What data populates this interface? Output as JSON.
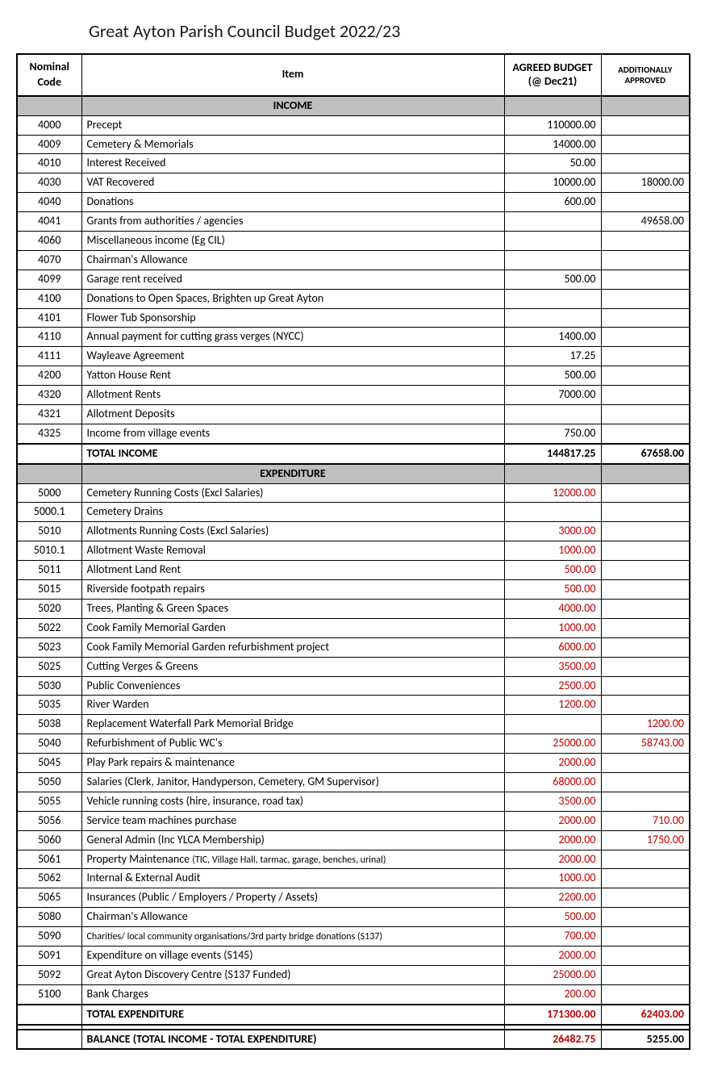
{
  "title": "Great Ayton Parish Council Budget 2022/23",
  "columns": {
    "code": "Nominal Code",
    "item": "Item",
    "budget": "AGREED BUDGET (@ Dec21)",
    "additional": "ADDITIONALLY APPROVED"
  },
  "sections": {
    "income": "INCOME",
    "expenditure": "EXPENDITURE"
  },
  "income_rows": [
    {
      "code": "4000",
      "item": "Precept",
      "budget": "110000.00",
      "add": ""
    },
    {
      "code": "4009",
      "item": "Cemetery & Memorials",
      "budget": "14000.00",
      "add": ""
    },
    {
      "code": "4010",
      "item": "Interest Received",
      "budget": "50.00",
      "add": ""
    },
    {
      "code": "4030",
      "item": "VAT Recovered",
      "budget": "10000.00",
      "add": "18000.00"
    },
    {
      "code": "4040",
      "item": "Donations",
      "budget": "600.00",
      "add": ""
    },
    {
      "code": "4041",
      "item": "Grants from authorities / agencies",
      "budget": "",
      "add": "49658.00"
    },
    {
      "code": "4060",
      "item": "Miscellaneous income (Eg CIL)",
      "budget": "",
      "add": ""
    },
    {
      "code": "4070",
      "item": "Chairman's Allowance",
      "budget": "",
      "add": ""
    },
    {
      "code": "4099",
      "item": "Garage rent received",
      "budget": "500.00",
      "add": ""
    },
    {
      "code": "4100",
      "item": "Donations to Open Spaces, Brighten up Great Ayton",
      "budget": "",
      "add": ""
    },
    {
      "code": "4101",
      "item": "Flower Tub Sponsorship",
      "budget": "",
      "add": ""
    },
    {
      "code": "4110",
      "item": "Annual payment for cutting grass verges (NYCC)",
      "budget": "1400.00",
      "add": ""
    },
    {
      "code": "4111",
      "item": "Wayleave Agreement",
      "budget": "17.25",
      "add": ""
    },
    {
      "code": "4200",
      "item": "Yatton House Rent",
      "budget": "500.00",
      "add": ""
    },
    {
      "code": "4320",
      "item": "Allotment Rents",
      "budget": "7000.00",
      "add": ""
    },
    {
      "code": "4321",
      "item": "Allotment Deposits",
      "budget": "",
      "add": ""
    },
    {
      "code": "4325",
      "item": "Income from village events",
      "budget": "750.00",
      "add": ""
    }
  ],
  "total_income": {
    "label": "TOTAL INCOME",
    "budget": "144817.25",
    "add": "67658.00"
  },
  "expenditure_rows": [
    {
      "code": "5000",
      "item": "Cemetery Running Costs (Excl Salaries)",
      "budget": "12000.00",
      "add": ""
    },
    {
      "code": "5000.1",
      "item": "Cemetery Drains",
      "budget": "",
      "add": ""
    },
    {
      "code": "5010",
      "item": "Allotments Running Costs (Excl Salaries)",
      "budget": "3000.00",
      "add": ""
    },
    {
      "code": "5010.1",
      "item": "Allotment Waste Removal",
      "budget": "1000.00",
      "add": ""
    },
    {
      "code": "5011",
      "item": "Allotment Land Rent",
      "budget": "500.00",
      "add": ""
    },
    {
      "code": "5015",
      "item": "Riverside footpath repairs",
      "budget": "500.00",
      "add": ""
    },
    {
      "code": "5020",
      "item": "Trees, Planting & Green Spaces",
      "budget": "4000.00",
      "add": ""
    },
    {
      "code": "5022",
      "item": "Cook Family Memorial Garden",
      "budget": "1000.00",
      "add": ""
    },
    {
      "code": "5023",
      "item": "Cook Family Memorial Garden refurbishment project",
      "budget": "6000.00",
      "add": ""
    },
    {
      "code": "5025",
      "item": "Cutting Verges & Greens",
      "budget": "3500.00",
      "add": ""
    },
    {
      "code": "5030",
      "item": "Public Conveniences",
      "budget": "2500.00",
      "add": ""
    },
    {
      "code": "5035",
      "item": "River Warden",
      "budget": "1200.00",
      "add": ""
    },
    {
      "code": "5038",
      "item": "Replacement Waterfall Park Memorial Bridge",
      "budget": "",
      "add": "1200.00"
    },
    {
      "code": "5040",
      "item": "Refurbishment of Public WC's",
      "budget": "25000.00",
      "add": "58743.00"
    },
    {
      "code": "5045",
      "item": "Play Park repairs & maintenance",
      "budget": "2000.00",
      "add": ""
    },
    {
      "code": "5050",
      "item": "Salaries (Clerk, Janitor, Handyperson, Cemetery, GM Supervisor)",
      "budget": "68000.00",
      "add": ""
    },
    {
      "code": "5055",
      "item": "Vehicle running costs (hire, insurance, road tax)",
      "budget": "3500.00",
      "add": ""
    },
    {
      "code": "5056",
      "item": "Service team machines purchase",
      "budget": "2000.00",
      "add": "710.00"
    },
    {
      "code": "5060",
      "item": "General Admin (Inc YLCA Membership)",
      "budget": "2000.00",
      "add": "1750.00"
    },
    {
      "code": "5061",
      "item": "Property Maintenance",
      "item_small": "(TIC, Village Hall, tarmac, garage, benches, urinal)",
      "budget": "2000.00",
      "add": ""
    },
    {
      "code": "5062",
      "item": "Internal & External Audit",
      "budget": "1000.00",
      "add": ""
    },
    {
      "code": "5065",
      "item": "Insurances (Public / Employers / Property / Assets)",
      "budget": "2200.00",
      "add": ""
    },
    {
      "code": "5080",
      "item": "Chairman's Allowance",
      "budget": "500.00",
      "add": ""
    },
    {
      "code": "5090",
      "item": "",
      "item_small": "Charities/ local community organisations/3rd party bridge donations (S137)",
      "budget": "700.00",
      "add": ""
    },
    {
      "code": "5091",
      "item": "Expenditure on village events (S145)",
      "budget": "2000.00",
      "add": ""
    },
    {
      "code": "5092",
      "item": "Great Ayton Discovery Centre (S137 Funded)",
      "budget": "25000.00",
      "add": ""
    },
    {
      "code": "5100",
      "item": "Bank Charges",
      "budget": "200.00",
      "add": ""
    }
  ],
  "total_expenditure": {
    "label": "TOTAL EXPENDITURE",
    "budget": "171300.00",
    "add": "62403.00"
  },
  "balance": {
    "label": "BALANCE (TOTAL INCOME - TOTAL EXPENDITURE)",
    "budget": "26482.75",
    "add": "5255.00"
  },
  "style": {
    "title_fontsize": 22,
    "body_fontsize": 14,
    "section_bg": "#bfbfbf",
    "red": "#c00000",
    "border": "#000000",
    "background": "#ffffff"
  }
}
